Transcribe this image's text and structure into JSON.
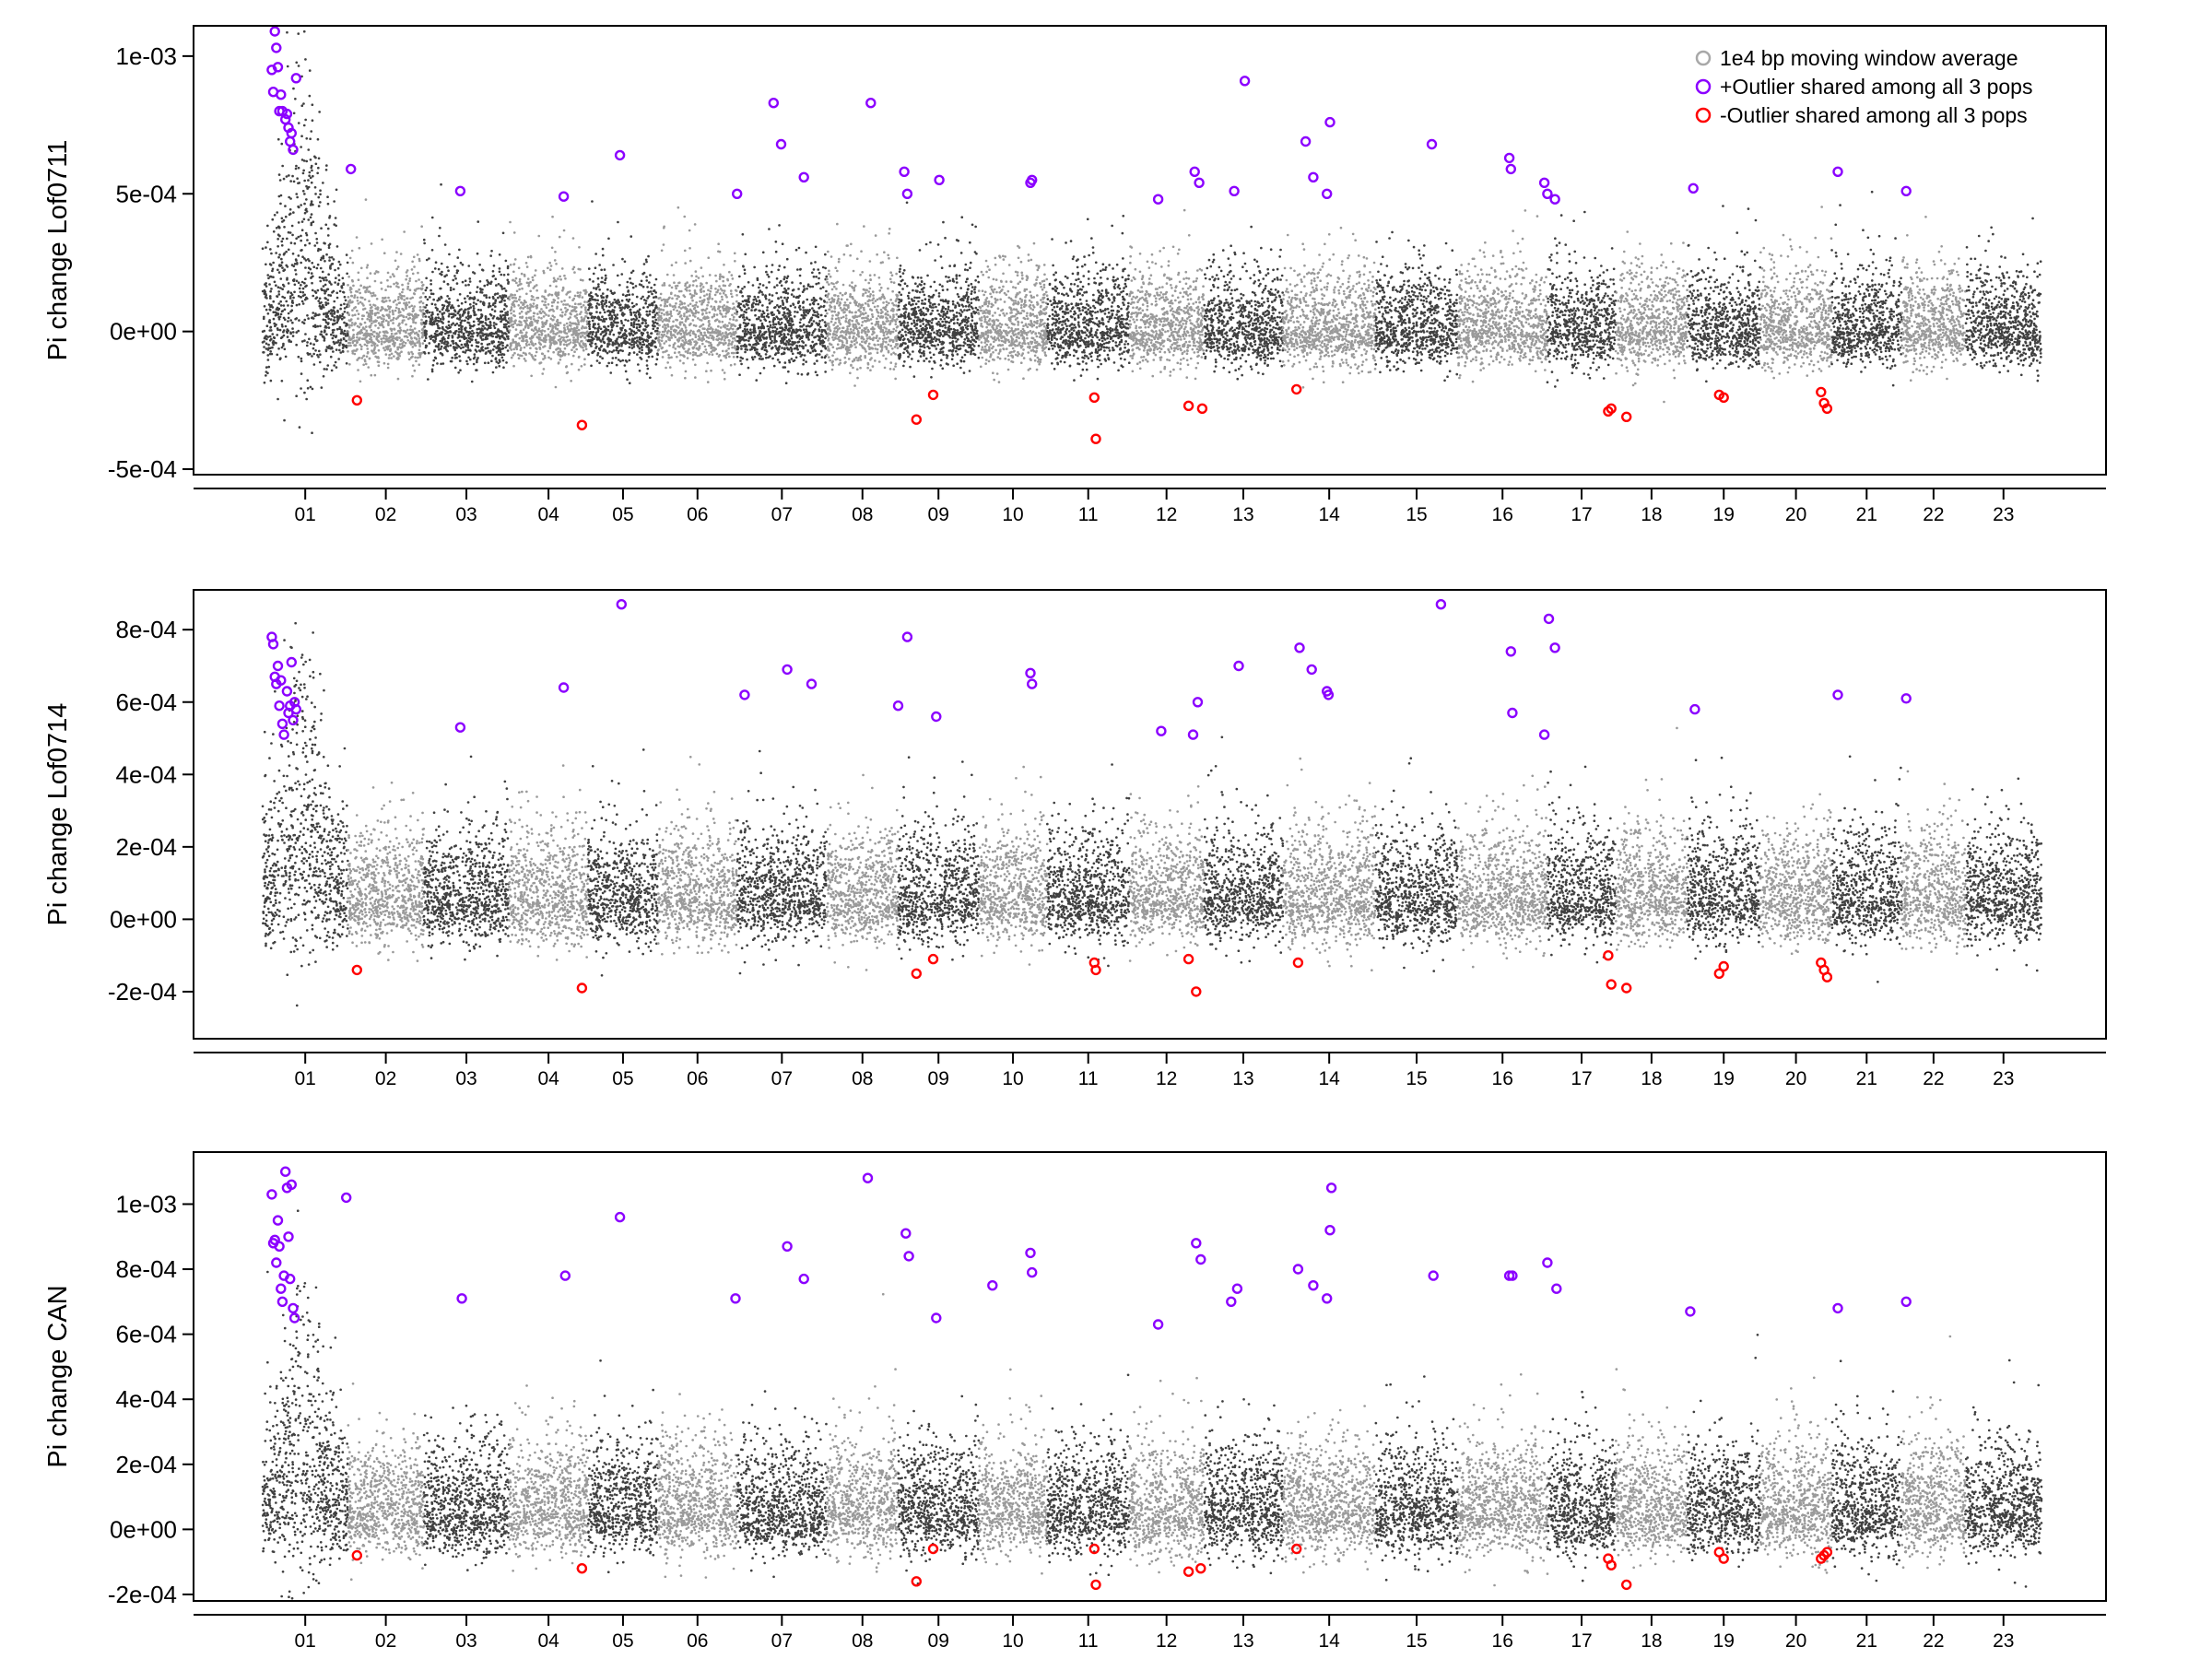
{
  "colors": {
    "dark": "#404040",
    "light": "#9a9a9a",
    "legend_avg": "#a8a8a8",
    "pos_outlier": "#8b00ff",
    "neg_outlier": "#ff0000",
    "axis": "#000000"
  },
  "legend": {
    "placement": "top-right of first panel",
    "items": [
      {
        "label": "1e4 bp moving window average",
        "color": "#a8a8a8"
      },
      {
        "label": "+Outlier shared among all 3 pops",
        "color": "#8b00ff"
      },
      {
        "label": "-Outlier shared among all 3 pops",
        "color": "#ff0000"
      }
    ]
  },
  "chart_data": [
    {
      "type": "scatter",
      "ylabel": "Pi change Lof0711",
      "ylim": [
        -0.00052,
        0.00111
      ],
      "yticks": [
        -0.0005,
        0,
        0.0005,
        0.001
      ],
      "ytick_labels": [
        "-5e-04",
        "0e+00",
        "5e-04",
        "1e-03"
      ],
      "categories": [
        "01",
        "02",
        "03",
        "04",
        "05",
        "06",
        "07",
        "08",
        "09",
        "10",
        "11",
        "12",
        "13",
        "14",
        "15",
        "16",
        "17",
        "18",
        "19",
        "20",
        "21",
        "22",
        "23"
      ],
      "chromosomes": [
        {
          "name": "01",
          "start": 0,
          "end": 56
        },
        {
          "name": "02",
          "start": 56,
          "end": 106
        },
        {
          "name": "03",
          "start": 106,
          "end": 162
        },
        {
          "name": "04",
          "start": 162,
          "end": 214
        },
        {
          "name": "05",
          "start": 214,
          "end": 260
        },
        {
          "name": "06",
          "start": 260,
          "end": 312
        },
        {
          "name": "07",
          "start": 312,
          "end": 371
        },
        {
          "name": "08",
          "start": 371,
          "end": 418
        },
        {
          "name": "09",
          "start": 418,
          "end": 471
        },
        {
          "name": "10",
          "start": 471,
          "end": 516
        },
        {
          "name": "11",
          "start": 516,
          "end": 570
        },
        {
          "name": "12",
          "start": 570,
          "end": 619
        },
        {
          "name": "13",
          "start": 619,
          "end": 671
        },
        {
          "name": "14",
          "start": 671,
          "end": 732
        },
        {
          "name": "15",
          "start": 732,
          "end": 786
        },
        {
          "name": "16",
          "start": 786,
          "end": 845
        },
        {
          "name": "17",
          "start": 845,
          "end": 890
        },
        {
          "name": "18",
          "start": 890,
          "end": 937
        },
        {
          "name": "19",
          "start": 937,
          "end": 985
        },
        {
          "name": "20",
          "start": 985,
          "end": 1032
        },
        {
          "name": "21",
          "start": 1032,
          "end": 1078
        },
        {
          "name": "22",
          "start": 1078,
          "end": 1120
        },
        {
          "name": "23",
          "start": 1120,
          "end": 1170
        }
      ],
      "background": {
        "center": 0.0,
        "spread": 0.00011,
        "chr01_peak": 0.0006
      },
      "pos_outliers": [
        [
          8,
          0.00109
        ],
        [
          9,
          0.00103
        ],
        [
          6,
          0.00095
        ],
        [
          10,
          0.00096
        ],
        [
          11,
          0.0008
        ],
        [
          13,
          0.0008
        ],
        [
          15,
          0.00077
        ],
        [
          17,
          0.00074
        ],
        [
          18,
          0.00069
        ],
        [
          20,
          0.00066
        ],
        [
          22,
          0.00092
        ],
        [
          7,
          0.00087
        ],
        [
          12,
          0.00086
        ],
        [
          16,
          0.00079
        ],
        [
          19,
          0.00072
        ],
        [
          58,
          0.00059
        ],
        [
          130,
          0.00051
        ],
        [
          198,
          0.00049
        ],
        [
          235,
          0.00064
        ],
        [
          312,
          0.0005
        ],
        [
          336,
          0.00083
        ],
        [
          341,
          0.00068
        ],
        [
          356,
          0.00056
        ],
        [
          400,
          0.00083
        ],
        [
          422,
          0.00058
        ],
        [
          424,
          0.0005
        ],
        [
          445,
          0.00055
        ],
        [
          505,
          0.00054
        ],
        [
          506,
          0.00055
        ],
        [
          589,
          0.00048
        ],
        [
          613,
          0.00058
        ],
        [
          616,
          0.00054
        ],
        [
          639,
          0.00051
        ],
        [
          646,
          0.00091
        ],
        [
          686,
          0.00069
        ],
        [
          691,
          0.00056
        ],
        [
          700,
          0.0005
        ],
        [
          702,
          0.00076
        ],
        [
          769,
          0.00068
        ],
        [
          820,
          0.00063
        ],
        [
          821,
          0.00059
        ],
        [
          843,
          0.00054
        ],
        [
          845,
          0.0005
        ],
        [
          850,
          0.00048
        ],
        [
          941,
          0.00052
        ],
        [
          1036,
          0.00058
        ],
        [
          1081,
          0.00051
        ]
      ],
      "neg_outliers": [
        [
          62,
          -0.00025
        ],
        [
          210,
          -0.00034
        ],
        [
          430,
          -0.00032
        ],
        [
          441,
          -0.00023
        ],
        [
          547,
          -0.00024
        ],
        [
          548,
          -0.00039
        ],
        [
          609,
          -0.00027
        ],
        [
          618,
          -0.00028
        ],
        [
          680,
          -0.00021
        ],
        [
          885,
          -0.00029
        ],
        [
          887,
          -0.00028
        ],
        [
          897,
          -0.00031
        ],
        [
          958,
          -0.00023
        ],
        [
          961,
          -0.00024
        ],
        [
          1025,
          -0.00022
        ],
        [
          1027,
          -0.00026
        ],
        [
          1029,
          -0.00028
        ]
      ]
    },
    {
      "type": "scatter",
      "ylabel": "Pi change Lof0714",
      "ylim": [
        -0.00033,
        0.00091
      ],
      "yticks": [
        -0.0002,
        0,
        0.0002,
        0.0004,
        0.0006,
        0.0008
      ],
      "ytick_labels": [
        "-2e-04",
        "0e+00",
        "2e-04",
        "4e-04",
        "6e-04",
        "8e-04"
      ],
      "categories": [
        "01",
        "02",
        "03",
        "04",
        "05",
        "06",
        "07",
        "08",
        "09",
        "10",
        "11",
        "12",
        "13",
        "14",
        "15",
        "16",
        "17",
        "18",
        "19",
        "20",
        "21",
        "22",
        "23"
      ],
      "background": {
        "center": 5e-05,
        "spread": 0.0001,
        "chr01_peak": 0.0004
      },
      "pos_outliers": [
        [
          6,
          0.00078
        ],
        [
          7,
          0.00076
        ],
        [
          8,
          0.00067
        ],
        [
          9,
          0.00065
        ],
        [
          10,
          0.0007
        ],
        [
          11,
          0.00059
        ],
        [
          13,
          0.00054
        ],
        [
          14,
          0.00051
        ],
        [
          16,
          0.00063
        ],
        [
          17,
          0.00057
        ],
        [
          18,
          0.00059
        ],
        [
          19,
          0.00071
        ],
        [
          20,
          0.00055
        ],
        [
          21,
          0.0006
        ],
        [
          22,
          0.00058
        ],
        [
          12,
          0.00066
        ],
        [
          130,
          0.00053
        ],
        [
          198,
          0.00064
        ],
        [
          236,
          0.00087
        ],
        [
          317,
          0.00062
        ],
        [
          345,
          0.00069
        ],
        [
          361,
          0.00065
        ],
        [
          424,
          0.00078
        ],
        [
          418,
          0.00059
        ],
        [
          443,
          0.00056
        ],
        [
          505,
          0.00068
        ],
        [
          506,
          0.00065
        ],
        [
          591,
          0.00052
        ],
        [
          612,
          0.00051
        ],
        [
          615,
          0.0006
        ],
        [
          642,
          0.0007
        ],
        [
          682,
          0.00075
        ],
        [
          690,
          0.00069
        ],
        [
          700,
          0.00063
        ],
        [
          701,
          0.00062
        ],
        [
          775,
          0.00087
        ],
        [
          821,
          0.00074
        ],
        [
          822,
          0.00057
        ],
        [
          846,
          0.00083
        ],
        [
          843,
          0.00051
        ],
        [
          850,
          0.00075
        ],
        [
          942,
          0.00058
        ],
        [
          1036,
          0.00062
        ],
        [
          1081,
          0.00061
        ]
      ],
      "neg_outliers": [
        [
          62,
          -0.00014
        ],
        [
          210,
          -0.00019
        ],
        [
          430,
          -0.00015
        ],
        [
          441,
          -0.00011
        ],
        [
          547,
          -0.00012
        ],
        [
          548,
          -0.00014
        ],
        [
          609,
          -0.00011
        ],
        [
          614,
          -0.0002
        ],
        [
          681,
          -0.00012
        ],
        [
          885,
          -0.0001
        ],
        [
          887,
          -0.00018
        ],
        [
          897,
          -0.00019
        ],
        [
          958,
          -0.00015
        ],
        [
          961,
          -0.00013
        ],
        [
          1025,
          -0.00012
        ],
        [
          1027,
          -0.00014
        ],
        [
          1029,
          -0.00016
        ]
      ]
    },
    {
      "type": "scatter",
      "ylabel": "Pi change CAN",
      "ylim": [
        -0.00022,
        0.00116
      ],
      "yticks": [
        -0.0002,
        0,
        0.0002,
        0.0004,
        0.0006,
        0.0008,
        0.001
      ],
      "ytick_labels": [
        "-2e-04",
        "0e+00",
        "2e-04",
        "4e-04",
        "6e-04",
        "8e-04",
        "1e-03"
      ],
      "categories": [
        "01",
        "02",
        "03",
        "04",
        "05",
        "06",
        "07",
        "08",
        "09",
        "10",
        "11",
        "12",
        "13",
        "14",
        "15",
        "16",
        "17",
        "18",
        "19",
        "20",
        "21",
        "22",
        "23"
      ],
      "background": {
        "center": 5e-05,
        "spread": 0.00011,
        "chr01_peak": 0.0004
      },
      "pos_outliers": [
        [
          6,
          0.00103
        ],
        [
          7,
          0.00088
        ],
        [
          8,
          0.00089
        ],
        [
          9,
          0.00082
        ],
        [
          10,
          0.00095
        ],
        [
          11,
          0.00087
        ],
        [
          12,
          0.00074
        ],
        [
          13,
          0.0007
        ],
        [
          15,
          0.0011
        ],
        [
          16,
          0.00105
        ],
        [
          17,
          0.0009
        ],
        [
          18,
          0.00077
        ],
        [
          19,
          0.00106
        ],
        [
          20,
          0.00068
        ],
        [
          21,
          0.00065
        ],
        [
          14,
          0.00078
        ],
        [
          55,
          0.00102
        ],
        [
          131,
          0.00071
        ],
        [
          199,
          0.00078
        ],
        [
          235,
          0.00096
        ],
        [
          311,
          0.00071
        ],
        [
          345,
          0.00087
        ],
        [
          356,
          0.00077
        ],
        [
          398,
          0.00108
        ],
        [
          423,
          0.00091
        ],
        [
          425,
          0.00084
        ],
        [
          443,
          0.00065
        ],
        [
          480,
          0.00075
        ],
        [
          505,
          0.00085
        ],
        [
          506,
          0.00079
        ],
        [
          589,
          0.00063
        ],
        [
          614,
          0.00088
        ],
        [
          617,
          0.00083
        ],
        [
          637,
          0.0007
        ],
        [
          641,
          0.00074
        ],
        [
          681,
          0.0008
        ],
        [
          691,
          0.00075
        ],
        [
          700,
          0.00071
        ],
        [
          702,
          0.00092
        ],
        [
          703,
          0.00105
        ],
        [
          770,
          0.00078
        ],
        [
          820,
          0.00078
        ],
        [
          822,
          0.00078
        ],
        [
          845,
          0.00082
        ],
        [
          851,
          0.00074
        ],
        [
          939,
          0.00067
        ],
        [
          1036,
          0.00068
        ],
        [
          1081,
          0.0007
        ]
      ],
      "neg_outliers": [
        [
          62,
          -8e-05
        ],
        [
          210,
          -0.00012
        ],
        [
          430,
          -0.00016
        ],
        [
          441,
          -6e-05
        ],
        [
          547,
          -6e-05
        ],
        [
          548,
          -0.00017
        ],
        [
          609,
          -0.00013
        ],
        [
          617,
          -0.00012
        ],
        [
          680,
          -6e-05
        ],
        [
          885,
          -9e-05
        ],
        [
          887,
          -0.00011
        ],
        [
          897,
          -0.00017
        ],
        [
          958,
          -7e-05
        ],
        [
          961,
          -9e-05
        ],
        [
          1025,
          -9e-05
        ],
        [
          1027,
          -8e-05
        ],
        [
          1029,
          -7e-05
        ]
      ]
    }
  ]
}
